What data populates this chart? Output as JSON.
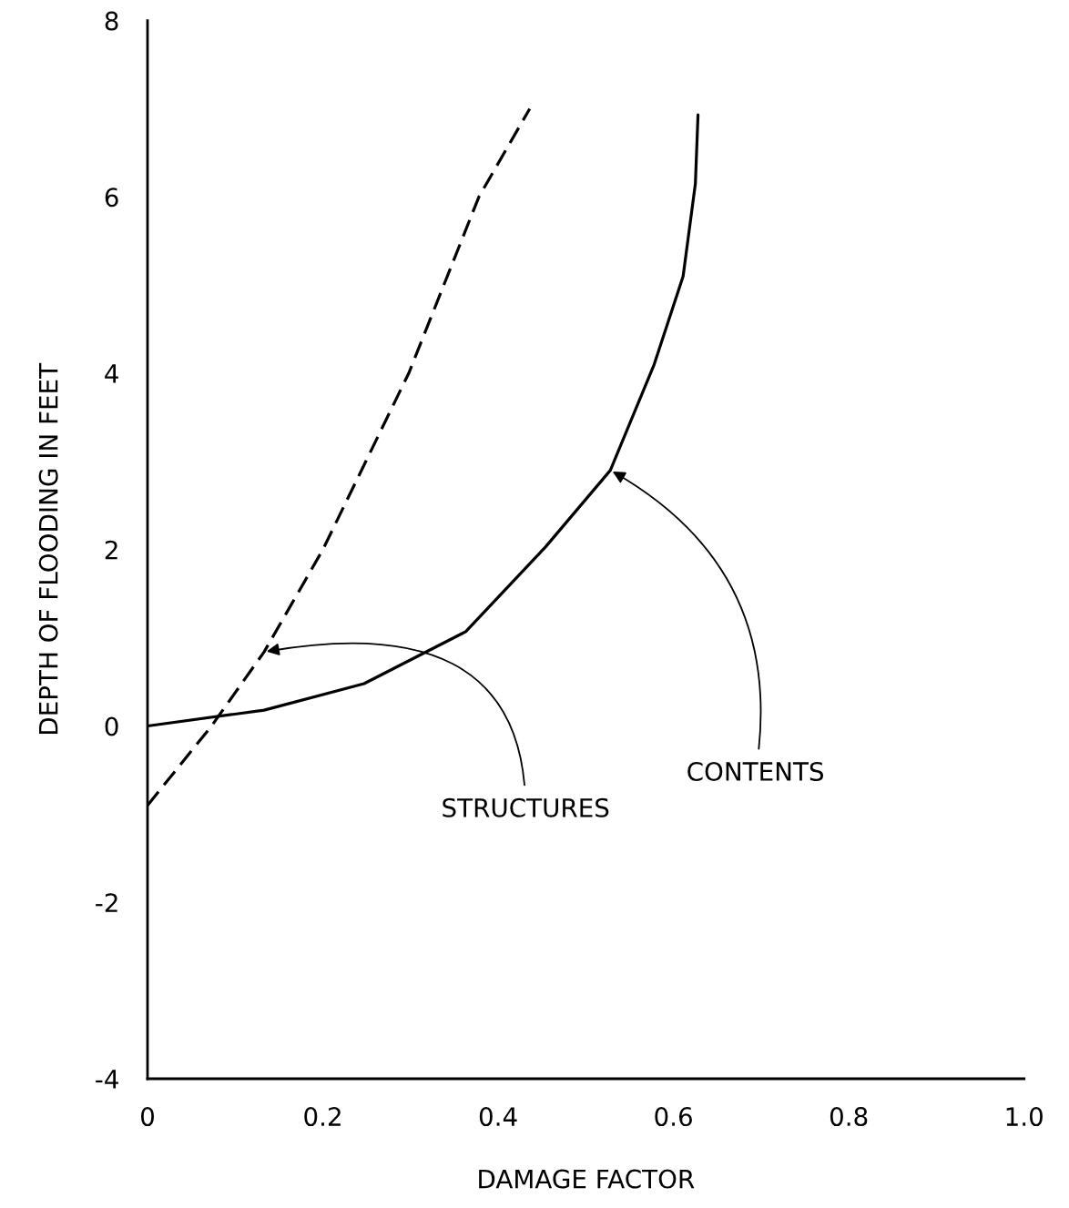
{
  "chart_data": {
    "type": "line",
    "xlabel": "DAMAGE FACTOR",
    "ylabel": "DEPTH OF FLOODING IN FEET",
    "xlim": [
      0,
      1.0
    ],
    "ylim": [
      -4,
      8
    ],
    "xticks": [
      0,
      0.2,
      0.4,
      0.6,
      0.8,
      {
        "value": 1.0,
        "label": "1.0"
      }
    ],
    "yticks": [
      -4,
      -2,
      0,
      2,
      4,
      6,
      8
    ],
    "grid": false,
    "legend": false,
    "marker": "none",
    "series": [
      {
        "color": "#000000",
        "line_style": "dashed",
        "x": [
          0,
          0.073,
          0.133,
          0.2,
          0.298,
          0.378,
          0.436
        ],
        "values": [
          -0.9,
          0,
          0.84,
          2,
          4,
          6,
          7
        ]
      },
      {
        "color": "#000000",
        "line_style": "solid",
        "x": [
          0,
          0.133,
          0.247,
          0.363,
          0.454,
          0.528,
          0.578,
          0.611,
          0.625,
          0.628
        ],
        "values": [
          0,
          0.18,
          0.48,
          1.07,
          2.03,
          2.9,
          4.1,
          5.1,
          6.15,
          6.93
        ]
      }
    ],
    "annotations": [
      {
        "text": "CONTENTS",
        "x": 0.528,
        "y": 2.9
      },
      {
        "text": "STRUCTURES",
        "x": 0.133,
        "y": 0.84
      }
    ]
  }
}
